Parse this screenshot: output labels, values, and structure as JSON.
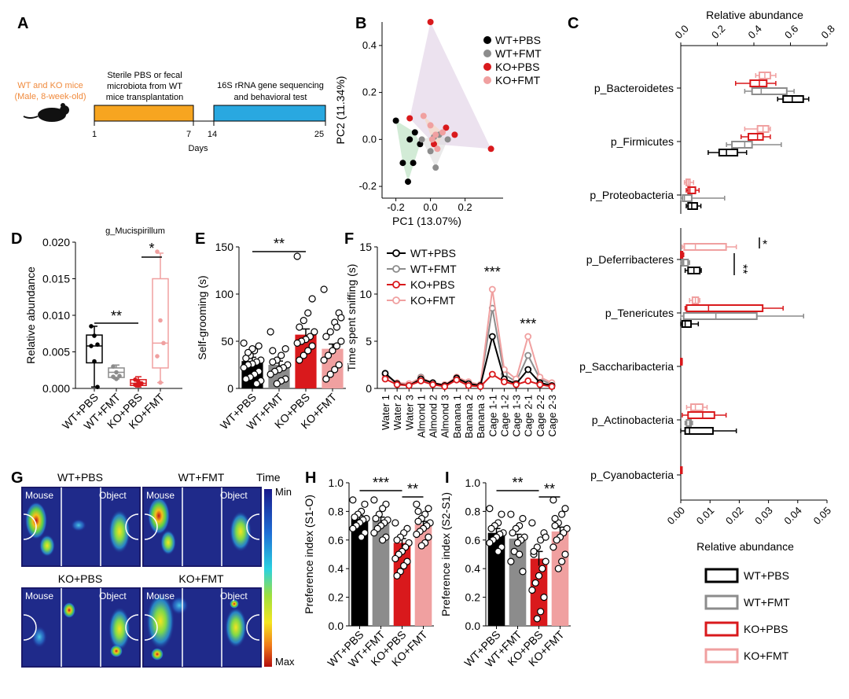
{
  "panel_labels": {
    "A": "A",
    "B": "B",
    "C": "C",
    "D": "D",
    "E": "E",
    "F": "F",
    "G": "G",
    "H": "H",
    "I": "I"
  },
  "colors": {
    "wt_pbs": "#000000",
    "wt_fmt": "#8c8c8c",
    "ko_pbs": "#d9191c",
    "ko_fmt": "#f0a0a0",
    "orange": "#f7a520",
    "blue": "#29a8e0",
    "mouse_text": "#f08a3c"
  },
  "panel_a": {
    "mice_label_1": "WT and KO mice",
    "mice_label_2": "(Male, 8-week-old)",
    "phase1_line1": "Sterile PBS or fecal",
    "phase1_line2": "microbiota from WT",
    "phase1_line3": "mice transplantation",
    "phase2_line1": "16S rRNA gene sequencing",
    "phase2_line2": "and behavioral test",
    "ticks": [
      "1",
      "7",
      "14",
      "25"
    ],
    "xlabel": "Days"
  },
  "legend_groups": [
    "WT+PBS",
    "WT+FMT",
    "KO+PBS",
    "KO+FMT"
  ],
  "chart_data": [
    {
      "panel": "B",
      "type": "scatter",
      "xlabel": "PC1 (13.07%)",
      "ylabel": "PC2 (11.34%)",
      "xlim": [
        -0.28,
        0.42
      ],
      "ylim": [
        -0.25,
        0.5
      ],
      "xticks": [
        "-0.2",
        "0.0",
        "0.2"
      ],
      "yticks": [
        "-0.2",
        "0.0",
        "0.2",
        "0.4"
      ],
      "series": [
        {
          "name": "WT+PBS",
          "points": [
            [
              -0.2,
              0.08
            ],
            [
              -0.16,
              -0.1
            ],
            [
              -0.13,
              -0.18
            ],
            [
              -0.1,
              -0.1
            ],
            [
              -0.12,
              0.0
            ],
            [
              -0.09,
              0.03
            ],
            [
              -0.06,
              -0.02
            ]
          ]
        },
        {
          "name": "WT+FMT",
          "points": [
            [
              -0.05,
              0.0
            ],
            [
              0.02,
              0.01
            ],
            [
              0.05,
              0.02
            ],
            [
              0.1,
              0.0
            ],
            [
              0.03,
              -0.12
            ],
            [
              0.0,
              -0.05
            ]
          ]
        },
        {
          "name": "KO+PBS",
          "points": [
            [
              0.0,
              0.5
            ],
            [
              0.14,
              0.02
            ],
            [
              0.09,
              0.05
            ],
            [
              0.35,
              -0.04
            ],
            [
              -0.12,
              0.09
            ],
            [
              0.02,
              -0.02
            ]
          ]
        },
        {
          "name": "KO+FMT",
          "points": [
            [
              -0.04,
              0.1
            ],
            [
              0.01,
              0.0
            ],
            [
              0.04,
              -0.04
            ],
            [
              0.07,
              0.03
            ],
            [
              0.0,
              0.06
            ],
            [
              0.03,
              0.02
            ]
          ]
        }
      ]
    },
    {
      "panel": "C",
      "type": "box",
      "orientation": "horizontal",
      "xlabel_top": "Relative abundance",
      "xlabel_bottom": "Relative abundance",
      "top_xlim": [
        0,
        0.8
      ],
      "top_ticks": [
        "0.0",
        "0.2",
        "0.4",
        "0.6",
        "0.8"
      ],
      "bottom_xlim": [
        0,
        0.05
      ],
      "bottom_ticks": [
        "0.00",
        "0.01",
        "0.02",
        "0.03",
        "0.04",
        "0.05"
      ],
      "categories": [
        "p_Bacteroidetes",
        "p_Firmicutes",
        "p_Proteobacteria",
        "p_Deferribacteres",
        "p_Tenericutes",
        "p_Saccharibacteria",
        "p_Actinobacteria",
        "p_Cyanobacteria"
      ],
      "scale": [
        "top",
        "top",
        "top",
        "bottom",
        "bottom",
        "bottom",
        "bottom",
        "bottom"
      ],
      "boxes": [
        [
          [
            0.53,
            0.56,
            0.61,
            0.67,
            0.7
          ],
          [
            0.35,
            0.39,
            0.44,
            0.58,
            0.62
          ],
          [
            0.3,
            0.38,
            0.43,
            0.47,
            0.52
          ],
          [
            0.41,
            0.43,
            0.46,
            0.49,
            0.52
          ]
        ],
        [
          [
            0.15,
            0.21,
            0.25,
            0.31,
            0.36
          ],
          [
            0.25,
            0.28,
            0.35,
            0.39,
            0.55
          ],
          [
            0.33,
            0.37,
            0.42,
            0.45,
            0.49
          ],
          [
            0.35,
            0.42,
            0.45,
            0.48,
            0.49
          ]
        ],
        [
          [
            0.03,
            0.04,
            0.06,
            0.09,
            0.11
          ],
          [
            0.0,
            0.01,
            0.02,
            0.06,
            0.24
          ],
          [
            0.03,
            0.04,
            0.05,
            0.08,
            0.1
          ],
          [
            0.02,
            0.03,
            0.04,
            0.05,
            0.07
          ]
        ],
        [
          [
            0.0015,
            0.0025,
            0.0045,
            0.0065,
            0.007
          ],
          [
            0.0,
            0.0005,
            0.001,
            0.0025,
            0.003
          ],
          [
            0.0,
            0.0,
            0.0003,
            0.0006,
            0.001
          ],
          [
            0.0005,
            0.0012,
            0.005,
            0.0155,
            0.019
          ]
        ],
        [
          [
            0.0,
            0.0005,
            0.0015,
            0.0035,
            0.006
          ],
          [
            0.0,
            0.001,
            0.012,
            0.026,
            0.042
          ],
          [
            0.0015,
            0.002,
            0.0095,
            0.028,
            0.035
          ],
          [
            0.003,
            0.004,
            0.005,
            0.006,
            0.0065
          ]
        ],
        [
          [
            0,
            0,
            0,
            0,
            0
          ],
          [
            0,
            0,
            0,
            0,
            0
          ],
          [
            0,
            0,
            0,
            0.0003,
            0.0005
          ],
          [
            0,
            0,
            0,
            0,
            0
          ]
        ],
        [
          [
            0.0,
            0.0015,
            0.003,
            0.011,
            0.019
          ],
          [
            0.0015,
            0.002,
            0.003,
            0.0035,
            0.004
          ],
          [
            0.0005,
            0.0025,
            0.0075,
            0.0115,
            0.0155
          ],
          [
            0.002,
            0.0035,
            0.005,
            0.0075,
            0.009
          ]
        ],
        [
          [
            0,
            0,
            0,
            0,
            0
          ],
          [
            0,
            0,
            0,
            0,
            0
          ],
          [
            0,
            0,
            0,
            0.0002,
            0.0004
          ],
          [
            0,
            0,
            0,
            0,
            0
          ]
        ]
      ],
      "significance": [
        "*",
        "**"
      ]
    },
    {
      "panel": "D",
      "type": "box",
      "title": "g_Mucispirillum",
      "ylabel": "Relative abundance",
      "ylim": [
        0,
        0.02
      ],
      "yticks": [
        "0.000",
        "0.005",
        "0.010",
        "0.015",
        "0.020"
      ],
      "categories": [
        "WT+PBS",
        "WT+FMT",
        "KO+PBS",
        "KO+FMT"
      ],
      "boxes": [
        [
          0.0002,
          0.0035,
          0.0058,
          0.0073,
          0.0085
        ],
        [
          0.0013,
          0.0015,
          0.0022,
          0.0028,
          0.0032
        ],
        [
          0.0002,
          0.0004,
          0.0007,
          0.0012,
          0.0016
        ],
        [
          0.0008,
          0.0028,
          0.0062,
          0.015,
          0.0185
        ]
      ],
      "points": [
        [
          0.0085,
          0.0072,
          0.006,
          0.0058,
          0.0037,
          0.0002
        ],
        [
          0.003,
          0.0022,
          0.0017,
          0.0016,
          0.0013
        ],
        [
          0.0012,
          0.0009,
          0.0007,
          0.0005,
          0.0004
        ],
        [
          0.0187,
          0.0093,
          0.0062,
          0.0044,
          0.0008
        ]
      ],
      "significance": [
        "**",
        "*"
      ]
    },
    {
      "panel": "E",
      "type": "bar",
      "ylabel": "Self-grooming (s)",
      "ylim": [
        0,
        150
      ],
      "yticks": [
        "0",
        "50",
        "100",
        "150"
      ],
      "categories": [
        "WT+PBS",
        "WT+FMT",
        "KO+PBS",
        "KO+FMT"
      ],
      "values": [
        29,
        25,
        57,
        42
      ],
      "errors": [
        4,
        4,
        6,
        5
      ],
      "points": [
        [
          48,
          45,
          40,
          35,
          32,
          30,
          28,
          26,
          25,
          22,
          18,
          15,
          12,
          10,
          8,
          5,
          42,
          38
        ],
        [
          60,
          42,
          35,
          30,
          28,
          25,
          22,
          20,
          18,
          15,
          10,
          8,
          5,
          40
        ],
        [
          140,
          95,
          80,
          72,
          65,
          60,
          55,
          52,
          50,
          48,
          45,
          40,
          35,
          30
        ],
        [
          105,
          80,
          70,
          60,
          55,
          50,
          45,
          40,
          35,
          30,
          25,
          20,
          15,
          10,
          75,
          65
        ]
      ],
      "significance": [
        "**"
      ]
    },
    {
      "panel": "F",
      "type": "line",
      "ylabel": "Time spent sniffing (s)",
      "ylim": [
        0,
        15
      ],
      "yticks": [
        "0",
        "5",
        "10",
        "15"
      ],
      "categories": [
        "Water 1",
        "Water 2",
        "Water 3",
        "Almond 1",
        "Almond 2",
        "Almond 3",
        "Banana 1",
        "Banana 2",
        "Banana 3",
        "Cage 1-1",
        "Cage 1-2",
        "Cage 1-3",
        "Cage 2-1",
        "Cage 2-2",
        "Cage 2-3"
      ],
      "series": [
        {
          "name": "WT+PBS",
          "values": [
            1.6,
            0.5,
            0.3,
            1.0,
            0.6,
            0.3,
            1.1,
            0.5,
            0.3,
            5.5,
            1.0,
            0.5,
            2.0,
            0.6,
            0.3
          ]
        },
        {
          "name": "WT+FMT",
          "values": [
            1.5,
            0.5,
            0.4,
            1.2,
            0.5,
            0.3,
            1.0,
            0.6,
            0.4,
            8.5,
            1.5,
            0.7,
            3.5,
            1.0,
            0.4
          ]
        },
        {
          "name": "KO+PBS",
          "values": [
            1.0,
            0.4,
            0.3,
            0.8,
            0.4,
            0.2,
            0.9,
            0.3,
            0.2,
            1.5,
            0.7,
            0.4,
            0.8,
            0.4,
            0.2
          ]
        },
        {
          "name": "KO+FMT",
          "values": [
            1.4,
            0.6,
            0.5,
            1.1,
            0.6,
            0.4,
            1.2,
            0.7,
            0.4,
            10.5,
            2.0,
            1.0,
            5.5,
            1.2,
            0.6
          ]
        }
      ],
      "significance": [
        "***",
        "***"
      ]
    },
    {
      "panel": "H",
      "type": "bar",
      "ylabel": "Preference index (S1-O)",
      "ylim": [
        0,
        1.0
      ],
      "yticks": [
        "0.0",
        "0.2",
        "0.4",
        "0.6",
        "0.8",
        "1.0"
      ],
      "categories": [
        "WT+PBS",
        "WT+FMT",
        "KO+PBS",
        "KO+FMT"
      ],
      "values": [
        0.75,
        0.74,
        0.58,
        0.71
      ],
      "errors": [
        0.02,
        0.02,
        0.03,
        0.02
      ],
      "points": [
        [
          0.88,
          0.85,
          0.8,
          0.78,
          0.76,
          0.75,
          0.74,
          0.72,
          0.7,
          0.68,
          0.65,
          0.62
        ],
        [
          0.88,
          0.85,
          0.82,
          0.78,
          0.75,
          0.74,
          0.72,
          0.7,
          0.68,
          0.65,
          0.62,
          0.6
        ],
        [
          0.72,
          0.68,
          0.65,
          0.62,
          0.6,
          0.58,
          0.55,
          0.52,
          0.5,
          0.47,
          0.45,
          0.42,
          0.38,
          0.35
        ],
        [
          0.85,
          0.82,
          0.78,
          0.75,
          0.73,
          0.72,
          0.7,
          0.68,
          0.66,
          0.64,
          0.62,
          0.58,
          0.56,
          0.8
        ]
      ],
      "significance": [
        "***",
        "**"
      ]
    },
    {
      "panel": "I",
      "type": "bar",
      "ylabel": "Preference index (S2-S1)",
      "ylim": [
        0,
        1.0
      ],
      "yticks": [
        "0.0",
        "0.2",
        "0.4",
        "0.6",
        "0.8",
        "1.0"
      ],
      "categories": [
        "WT+PBS",
        "WT+FMT",
        "KO+PBS",
        "KO+FMT"
      ],
      "values": [
        0.65,
        0.61,
        0.47,
        0.66
      ],
      "errors": [
        0.03,
        0.03,
        0.05,
        0.03
      ],
      "points": [
        [
          0.82,
          0.78,
          0.72,
          0.7,
          0.68,
          0.65,
          0.64,
          0.62,
          0.6,
          0.58,
          0.55,
          0.52
        ],
        [
          0.78,
          0.75,
          0.7,
          0.68,
          0.65,
          0.62,
          0.6,
          0.58,
          0.52,
          0.45,
          0.38,
          0.5
        ],
        [
          0.72,
          0.65,
          0.6,
          0.55,
          0.5,
          0.45,
          0.4,
          0.35,
          0.3,
          0.25,
          0.2,
          0.1,
          0.05,
          0.52,
          0.62
        ],
        [
          0.88,
          0.82,
          0.78,
          0.72,
          0.7,
          0.68,
          0.65,
          0.62,
          0.6,
          0.55,
          0.5,
          0.45,
          0.4,
          0.75
        ]
      ],
      "significance": [
        "**",
        "**"
      ]
    }
  ],
  "panel_g": {
    "labels": [
      "WT+PBS",
      "WT+FMT",
      "KO+PBS",
      "KO+FMT"
    ],
    "zone_left": "Mouse",
    "zone_right": "Object",
    "colorbar_title": "Time",
    "colorbar_min": "Min",
    "colorbar_max": "Max"
  }
}
